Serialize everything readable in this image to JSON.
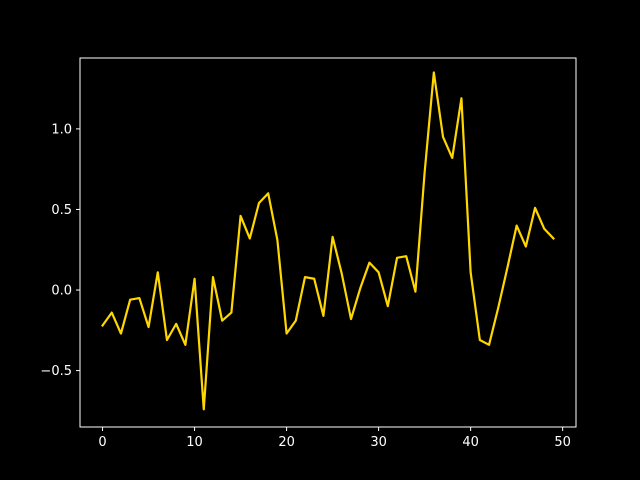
{
  "chart_data": {
    "type": "line",
    "title": "",
    "xlabel": "",
    "ylabel": "",
    "xlim": [
      -2.45,
      51.45
    ],
    "ylim": [
      -0.85,
      1.44
    ],
    "grid": false,
    "background": "#000000",
    "axis_color": "#ffffff",
    "line_color": "#ffd700",
    "xticks": [
      0,
      10,
      20,
      30,
      40,
      50
    ],
    "xtick_labels": [
      "0",
      "10",
      "20",
      "30",
      "40",
      "50"
    ],
    "yticks": [
      -0.5,
      0.0,
      0.5,
      1.0
    ],
    "ytick_labels": [
      "−0.5",
      "0.0",
      "0.5",
      "1.0"
    ],
    "series": [
      {
        "x": [
          0,
          1,
          2,
          3,
          4,
          5,
          6,
          7,
          8,
          9,
          10,
          11,
          12,
          13,
          14,
          15,
          16,
          17,
          18,
          19,
          20,
          21,
          22,
          23,
          24,
          25,
          26,
          27,
          28,
          29,
          30,
          31,
          32,
          33,
          34,
          35,
          36,
          37,
          38,
          39,
          40,
          41,
          42,
          43,
          44,
          45,
          46,
          47,
          48,
          49
        ],
        "values": [
          -0.22,
          -0.14,
          -0.27,
          -0.06,
          -0.05,
          -0.23,
          0.11,
          -0.31,
          -0.21,
          -0.34,
          0.07,
          -0.74,
          0.08,
          -0.19,
          -0.14,
          0.46,
          0.32,
          0.54,
          0.6,
          0.31,
          -0.27,
          -0.19,
          0.08,
          0.07,
          -0.16,
          0.33,
          0.1,
          -0.18,
          0.01,
          0.17,
          0.11,
          -0.1,
          0.2,
          0.21,
          -0.01,
          0.73,
          1.35,
          0.95,
          0.82,
          1.19,
          0.11,
          -0.31,
          -0.34,
          -0.11,
          0.14,
          0.4,
          0.27,
          0.51,
          0.38,
          0.32
        ]
      }
    ]
  }
}
